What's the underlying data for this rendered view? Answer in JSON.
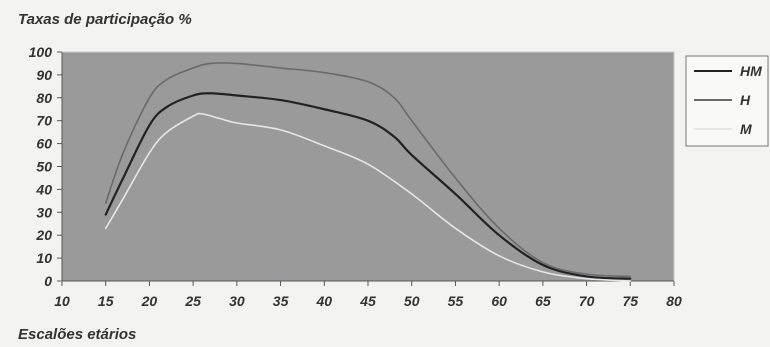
{
  "chart_data": {
    "type": "line",
    "title": "Taxas de participação %",
    "xlabel": "Escalões etários",
    "ylabel": "",
    "xlim": [
      10,
      80
    ],
    "ylim": [
      0,
      100
    ],
    "x_ticks": [
      10,
      15,
      20,
      25,
      30,
      35,
      40,
      45,
      50,
      55,
      60,
      65,
      70,
      75,
      80
    ],
    "y_ticks": [
      0,
      10,
      20,
      30,
      40,
      50,
      60,
      70,
      80,
      90,
      100
    ],
    "grid": false,
    "legend_position": "right",
    "plot_background": "#9a9a9a",
    "series": [
      {
        "name": "HM",
        "color": "#222222",
        "x": [
          15,
          17,
          20,
          22,
          25,
          27,
          30,
          35,
          40,
          45,
          48,
          50,
          55,
          60,
          65,
          70,
          75
        ],
        "values": [
          29,
          45,
          68,
          76,
          81,
          82,
          81,
          79,
          75,
          70,
          63,
          55,
          38,
          20,
          7,
          2,
          1
        ]
      },
      {
        "name": "H",
        "color": "#6a6a6a",
        "x": [
          15,
          17,
          20,
          22,
          25,
          27,
          30,
          35,
          40,
          45,
          48,
          50,
          55,
          60,
          65,
          70,
          75
        ],
        "values": [
          34,
          56,
          80,
          88,
          93,
          95,
          95,
          93,
          91,
          87,
          80,
          70,
          45,
          23,
          8,
          3,
          2
        ]
      },
      {
        "name": "M",
        "color": "#e6e6e6",
        "x": [
          15,
          17,
          20,
          22,
          25,
          26,
          28,
          30,
          35,
          40,
          45,
          50,
          55,
          60,
          65,
          70,
          75
        ],
        "values": [
          23,
          36,
          56,
          65,
          72,
          73,
          71,
          69,
          66,
          59,
          51,
          38,
          23,
          11,
          4,
          1,
          0
        ]
      }
    ]
  }
}
